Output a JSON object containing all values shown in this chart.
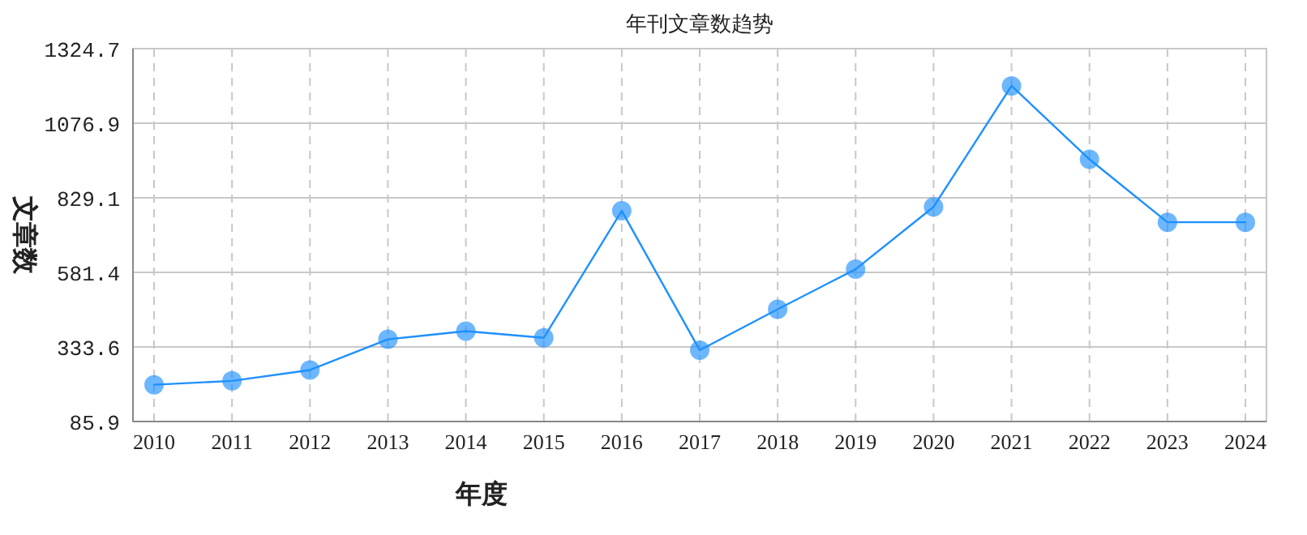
{
  "chart_data": {
    "type": "line",
    "title": "年刊文章数趋势",
    "xlabel": "年度",
    "ylabel": "文章数",
    "categories": [
      "2010",
      "2011",
      "2012",
      "2013",
      "2014",
      "2015",
      "2016",
      "2017",
      "2018",
      "2019",
      "2020",
      "2021",
      "2022",
      "2023",
      "2024"
    ],
    "series": [
      {
        "color": "#1e90ff",
        "values": [
          208,
          221,
          257,
          359,
          386,
          364,
          786,
          323,
          459,
          592,
          799,
          1201,
          957,
          748,
          748
        ]
      }
    ],
    "ylim": [
      85.9,
      1324.7
    ],
    "yticks": [
      85.9,
      333.6,
      581.4,
      829.1,
      1076.9,
      1324.7
    ],
    "grid": true,
    "marker": "circle",
    "line_style": "solid"
  }
}
